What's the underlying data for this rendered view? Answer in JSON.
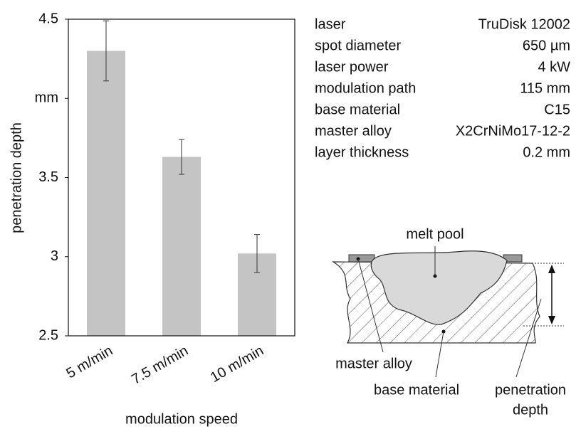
{
  "chart_data": {
    "type": "bar",
    "y_label": "penetration depth",
    "x_label": "modulation speed",
    "categories": [
      "5 m/min",
      "7.5 m/min",
      "10 m/min"
    ],
    "values": [
      4.3,
      3.63,
      3.02
    ],
    "errors": [
      0.19,
      0.11,
      0.12
    ],
    "color": "#c4c4c4",
    "ylim": [
      2.5,
      4.5
    ],
    "yticks": [
      2.5,
      3,
      3.5,
      {
        "value": 4,
        "label": "mm"
      },
      4.5
    ]
  },
  "parameters": {
    "rows": [
      [
        "laser",
        "TruDisk 12002"
      ],
      [
        "spot diameter",
        "650 µm"
      ],
      [
        "laser power",
        "4 kW"
      ],
      [
        "modulation path",
        "115 mm"
      ],
      [
        "base material",
        "C15"
      ],
      [
        "master alloy",
        "X2CrNiMo17-12-2"
      ],
      [
        "layer thickness",
        "0.2 mm"
      ]
    ]
  },
  "diagram": {
    "labels": {
      "melt_pool": "melt pool",
      "master_alloy": "master alloy",
      "base_material": "base material",
      "penetration_depth": [
        "penetration",
        "depth"
      ]
    }
  }
}
